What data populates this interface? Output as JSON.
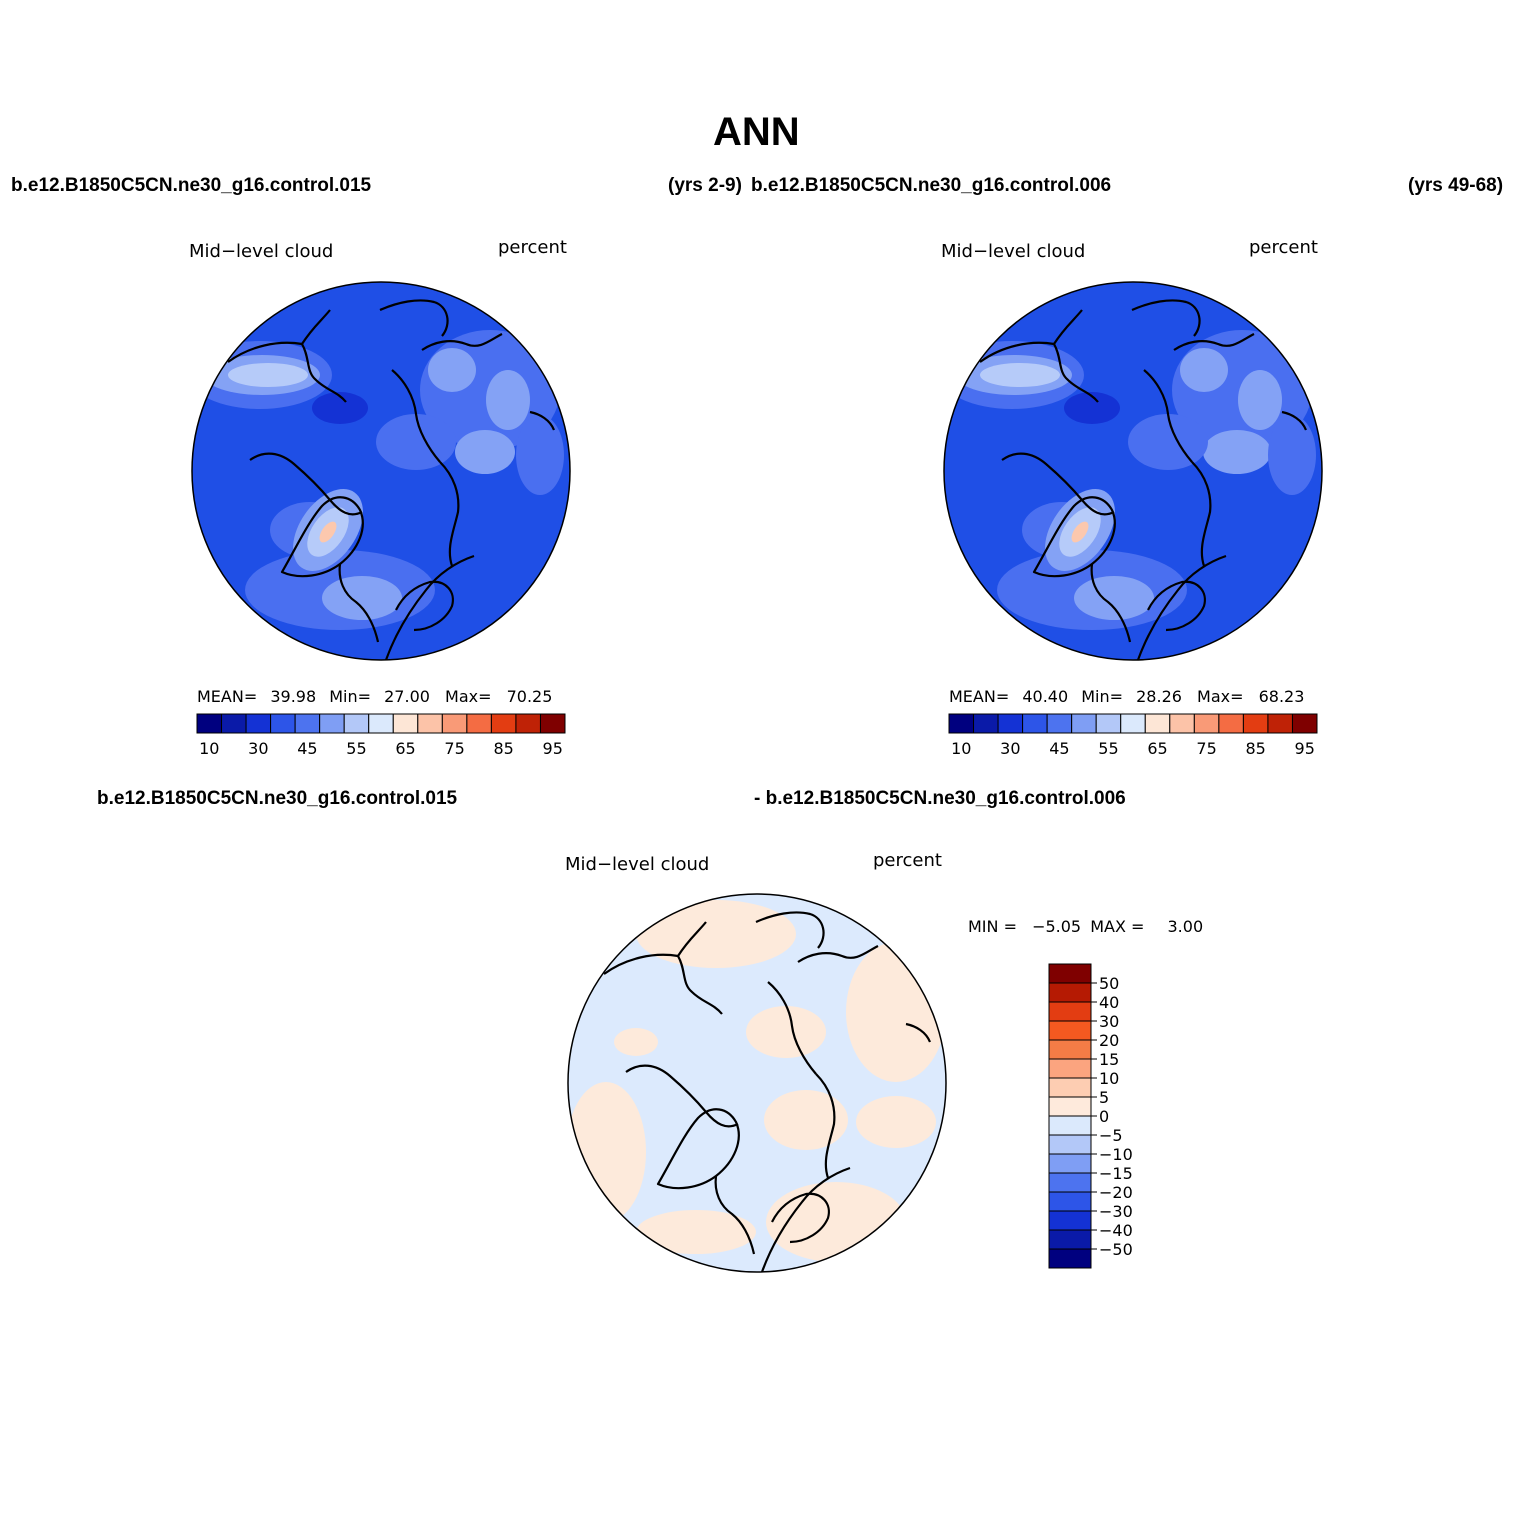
{
  "title": "ANN",
  "header": {
    "case1": "b.e12.B1850C5CN.ne30_g16.control.015",
    "years1": "(yrs 2-9)",
    "case2": "b.e12.B1850C5CN.ne30_g16.control.006",
    "years2": "(yrs 49-68)"
  },
  "diff_header": {
    "case1": "b.e12.B1850C5CN.ne30_g16.control.015",
    "case2": "- b.e12.B1850C5CN.ne30_g16.control.006"
  },
  "panels": [
    {
      "variable": "Mid−level cloud",
      "units": "percent",
      "stats": {
        "mean_label": "MEAN=",
        "mean": "39.98",
        "min_label": "Min=",
        "min": "27.00",
        "max_label": "Max=",
        "max": "70.25"
      }
    },
    {
      "variable": "Mid−level cloud",
      "units": "percent",
      "stats": {
        "mean_label": "MEAN=",
        "mean": "40.40",
        "min_label": "Min=",
        "min": "28.26",
        "max_label": "Max=",
        "max": "68.23"
      }
    }
  ],
  "diff_panel": {
    "variable": "Mid−level cloud",
    "units": "percent",
    "stats": {
      "min_label": "MIN =",
      "min": "−5.05",
      "max_label": "MAX =",
      "max": "3.00"
    }
  },
  "colorbar_main": {
    "colors": [
      "#00007f",
      "#0a1aa8",
      "#1432d4",
      "#2d55e8",
      "#4d73ef",
      "#7f9ef4",
      "#b3c8f8",
      "#dbe9fc",
      "#fde6d6",
      "#fcc3a8",
      "#f99a77",
      "#f46c43",
      "#e33d12",
      "#bf2206",
      "#7f0000"
    ],
    "labels": [
      "10",
      "30",
      "45",
      "55",
      "65",
      "75",
      "85",
      "95"
    ]
  },
  "colorbar_diff": {
    "colors": [
      "#7f0000",
      "#b51a03",
      "#e33d12",
      "#f45920",
      "#f47c46",
      "#fba47f",
      "#fdcdb2",
      "#feeadc",
      "#dbe9fc",
      "#b3c8f8",
      "#7f9ef4",
      "#4d73ef",
      "#2d55e8",
      "#1432d4",
      "#0a1aa8",
      "#00007f"
    ],
    "labels": [
      "50",
      "40",
      "30",
      "20",
      "15",
      "10",
      "5",
      "0",
      "−5",
      "−10",
      "−15",
      "−20",
      "−30",
      "−40",
      "−50"
    ]
  },
  "map_colors": {
    "base_main": "#1f4fe6",
    "mid_main": "#4a6ff0",
    "light_main": "#84a2f5",
    "pale_main": "#b6cbf9",
    "peak_main": "#fcc8ae",
    "dark_main": "#1432d4",
    "base_diff": "#dceafd",
    "warm_diff": "#fdeadb",
    "coast": "#000000"
  }
}
